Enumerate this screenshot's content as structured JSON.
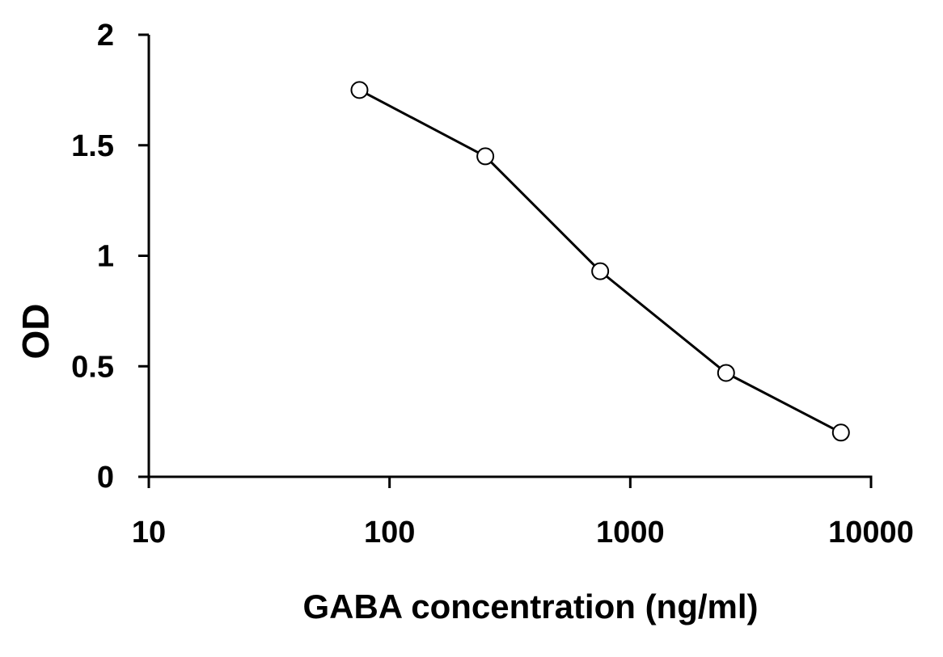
{
  "chart_data": {
    "type": "line",
    "title": "",
    "xlabel": "GABA concentration (ng/ml)",
    "ylabel": "OD",
    "x_scale": "log",
    "xlim": [
      10,
      10000
    ],
    "ylim": [
      0,
      2
    ],
    "x_ticks": [
      "10",
      "100",
      "1000",
      "10000"
    ],
    "y_ticks": [
      "0",
      "0.5",
      "1",
      "1.5",
      "2"
    ],
    "grid": false,
    "legend": "none",
    "series": [
      {
        "x": [
          75,
          250,
          750,
          2500,
          7500
        ],
        "y": [
          1.75,
          1.45,
          0.93,
          0.47,
          0.2
        ],
        "color": "#000000",
        "marker": "open-circle"
      }
    ]
  }
}
